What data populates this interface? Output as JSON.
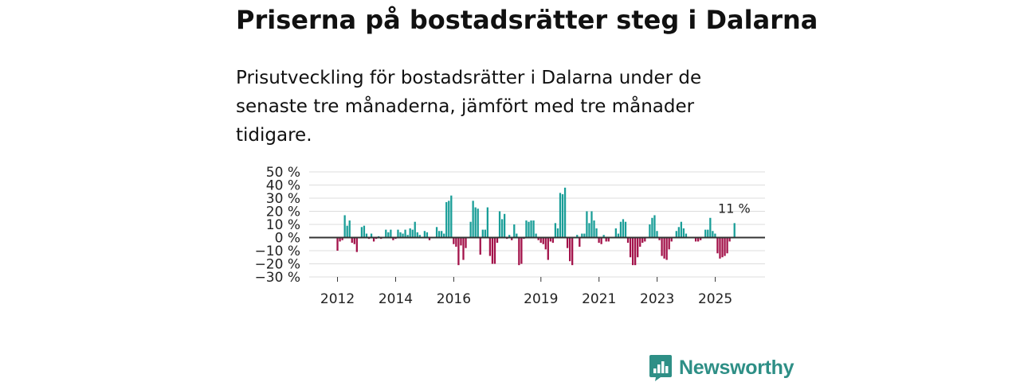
{
  "header": {
    "title": "Priserna på bostadsrätter steg i Dalarna",
    "subtitle": "Prisutveckling för bostadsrätter i Dalarna under de senaste tre månaderna, jämfört med tre månader tidigare."
  },
  "colors": {
    "positive": "#1a9e98",
    "negative": "#a3124a",
    "zero_line": "#333333",
    "grid": "#dddddd",
    "brand": "#2e8f86"
  },
  "chart_data": {
    "type": "bar",
    "title": "Priserna på bostadsrätter steg i Dalarna",
    "xlabel": "",
    "ylabel": "",
    "ylim": [
      -30,
      50
    ],
    "grid": true,
    "y_ticks": [
      50,
      40,
      30,
      20,
      10,
      0,
      -10,
      -20,
      -30
    ],
    "y_tick_labels": [
      "50 %",
      "40 %",
      "30 %",
      "20 %",
      "10 %",
      "0 %",
      "−10 %",
      "−20 %",
      "−30 %"
    ],
    "x_tick_labels": [
      {
        "label": "2012",
        "x": 2012.0
      },
      {
        "label": "2014",
        "x": 2014.0
      },
      {
        "label": "2016",
        "x": 2016.0
      },
      {
        "label": "2019",
        "x": 2019.0
      },
      {
        "label": "2021",
        "x": 2021.0
      },
      {
        "label": "2023",
        "x": 2023.0
      },
      {
        "label": "2025",
        "x": 2025.0
      }
    ],
    "x_range": [
      2011.3,
      2026.3
    ],
    "start": 2012.0,
    "step": 0.0833,
    "values": [
      -10,
      -3,
      -2,
      17,
      9,
      13,
      -4,
      -5,
      -11,
      0,
      8,
      9,
      3,
      -1,
      3,
      -3,
      -1,
      1,
      -1,
      0,
      6,
      4,
      6,
      -2,
      -1,
      6,
      4,
      3,
      6,
      2,
      7,
      6,
      12,
      4,
      2,
      0,
      5,
      4,
      -2,
      0,
      0,
      8,
      5,
      5,
      3,
      27,
      28,
      32,
      -5,
      -7,
      -21,
      -6,
      -17,
      -8,
      0,
      12,
      28,
      23,
      22,
      -13,
      6,
      6,
      23,
      -14,
      -20,
      -20,
      -4,
      20,
      14,
      18,
      -1,
      2,
      -2,
      10,
      3,
      -21,
      -20,
      -1,
      13,
      12,
      13,
      13,
      3,
      -2,
      -4,
      -5,
      -9,
      -17,
      -3,
      -4,
      11,
      7,
      34,
      33,
      38,
      -8,
      -18,
      -21,
      0,
      2,
      -7,
      3,
      3,
      20,
      11,
      20,
      13,
      7,
      -4,
      -5,
      2,
      -3,
      -3,
      0,
      0,
      7,
      3,
      12,
      14,
      12,
      -4,
      -15,
      -21,
      -21,
      -15,
      -7,
      -4,
      -3,
      0,
      10,
      15,
      17,
      5,
      -2,
      -14,
      -16,
      -17,
      -9,
      -3,
      0,
      5,
      8,
      12,
      7,
      3,
      0,
      0,
      0,
      -3,
      -3,
      -2,
      0,
      6,
      6,
      15,
      5,
      3,
      -12,
      -16,
      -15,
      -14,
      -12,
      -3,
      0,
      11
    ],
    "annotation": {
      "label": "11 %",
      "value": 11
    }
  },
  "brand": {
    "name": "Newsworthy"
  }
}
